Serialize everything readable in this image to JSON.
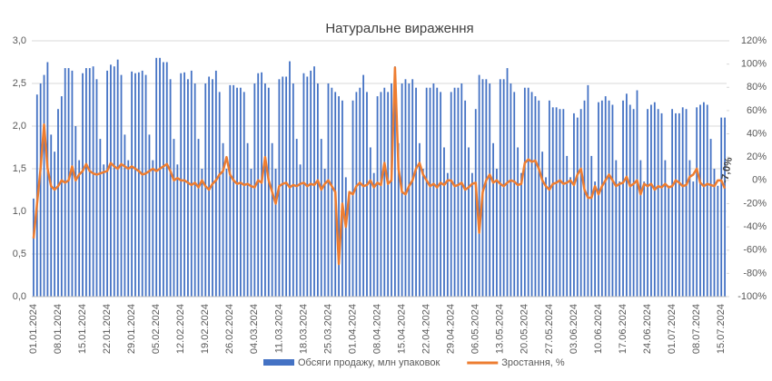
{
  "chart_data": {
    "type": "bar-line",
    "title": "Натуральне вираження",
    "categories": [
      "01.01.2024",
      null,
      null,
      null,
      null,
      null,
      null,
      "08.01.2024",
      null,
      null,
      null,
      null,
      null,
      null,
      "15.01.2024",
      null,
      null,
      null,
      null,
      null,
      null,
      "22.01.2024",
      null,
      null,
      null,
      null,
      null,
      null,
      "29.01.2024",
      null,
      null,
      null,
      null,
      null,
      null,
      "05.02.2024",
      null,
      null,
      null,
      null,
      null,
      null,
      "12.02.2024",
      null,
      null,
      null,
      null,
      null,
      null,
      "19.02.2024",
      null,
      null,
      null,
      null,
      null,
      null,
      "26.02.2024",
      null,
      null,
      null,
      null,
      null,
      null,
      "04.03.2024",
      null,
      null,
      null,
      null,
      null,
      null,
      "11.03.2024",
      null,
      null,
      null,
      null,
      null,
      null,
      "18.03.2024",
      null,
      null,
      null,
      null,
      null,
      null,
      "25.03.2024",
      null,
      null,
      null,
      null,
      null,
      null,
      "01.04.2024",
      null,
      null,
      null,
      null,
      null,
      null,
      "08.04.2024",
      null,
      null,
      null,
      null,
      null,
      null,
      "15.04.2024",
      null,
      null,
      null,
      null,
      null,
      null,
      "22.04.2024",
      null,
      null,
      null,
      null,
      null,
      null,
      "29.04.2024",
      null,
      null,
      null,
      null,
      null,
      null,
      "06.05.2024",
      null,
      null,
      null,
      null,
      null,
      null,
      "13.05.2024",
      null,
      null,
      null,
      null,
      null,
      null,
      "20.05.2024",
      null,
      null,
      null,
      null,
      null,
      null,
      "27.05.2024",
      null,
      null,
      null,
      null,
      null,
      null,
      "03.06.2024",
      null,
      null,
      null,
      null,
      null,
      null,
      "10.06.2024",
      null,
      null,
      null,
      null,
      null,
      null,
      "17.06.2024",
      null,
      null,
      null,
      null,
      null,
      null,
      "24.06.2024",
      null,
      null,
      null,
      null,
      null,
      null,
      "01.07.2024",
      null,
      null,
      null,
      null,
      null,
      null,
      "08.07.2024",
      null,
      null,
      null,
      null,
      null,
      null,
      "15.07.2024",
      null
    ],
    "series": [
      {
        "name": "Обсяги продажу, млн упаковок",
        "color": "#4472c4",
        "type": "bar",
        "values": [
          1.15,
          2.37,
          2.5,
          2.6,
          2.75,
          1.9,
          1.7,
          2.2,
          2.35,
          2.68,
          2.68,
          2.65,
          2.0,
          1.6,
          2.62,
          2.68,
          2.68,
          2.7,
          2.55,
          1.85,
          1.55,
          2.65,
          2.72,
          2.7,
          2.78,
          2.6,
          1.9,
          1.6,
          2.64,
          2.62,
          2.63,
          2.65,
          2.6,
          1.9,
          1.6,
          2.8,
          2.8,
          2.75,
          2.75,
          2.55,
          1.85,
          1.55,
          2.62,
          2.63,
          2.55,
          2.65,
          2.5,
          1.85,
          1.5,
          2.5,
          2.58,
          2.55,
          2.65,
          2.4,
          1.8,
          1.5,
          2.48,
          2.48,
          2.45,
          2.45,
          2.4,
          1.8,
          1.5,
          2.5,
          2.62,
          2.63,
          2.5,
          2.45,
          1.8,
          1.5,
          2.55,
          2.58,
          2.58,
          2.76,
          2.5,
          1.85,
          1.55,
          2.62,
          2.58,
          2.65,
          2.7,
          2.5,
          1.85,
          1.5,
          2.5,
          2.45,
          2.4,
          2.35,
          2.3,
          1.4,
          1.2,
          2.3,
          2.4,
          2.45,
          2.6,
          2.4,
          1.75,
          1.45,
          2.35,
          2.4,
          2.45,
          2.4,
          2.5,
          2.7,
          1.8,
          2.5,
          2.55,
          2.5,
          2.55,
          2.45,
          1.8,
          1.5,
          2.45,
          2.45,
          2.5,
          2.45,
          2.4,
          1.75,
          1.45,
          2.4,
          2.45,
          2.45,
          2.5,
          2.3,
          1.75,
          1.45,
          2.2,
          2.6,
          2.55,
          2.55,
          2.5,
          1.8,
          1.5,
          2.55,
          2.55,
          2.68,
          2.5,
          2.4,
          1.75,
          1.45,
          2.45,
          2.45,
          2.4,
          2.35,
          2.3,
          1.7,
          1.4,
          2.3,
          2.22,
          2.22,
          2.2,
          2.2,
          1.65,
          1.4,
          2.15,
          2.1,
          2.2,
          2.3,
          2.48,
          1.65,
          1.35,
          2.28,
          2.3,
          2.35,
          2.3,
          2.25,
          1.6,
          1.35,
          2.3,
          2.38,
          2.25,
          2.2,
          2.42,
          1.6,
          1.35,
          2.2,
          2.25,
          2.28,
          2.2,
          2.15,
          1.6,
          1.3,
          2.2,
          2.15,
          2.15,
          2.22,
          2.2,
          1.6,
          1.35,
          2.22,
          2.25,
          2.28,
          2.25,
          1.85,
          1.5,
          1.3,
          2.1,
          2.1
        ]
      },
      {
        "name": "Зростання, %",
        "color": "#ed7d31",
        "type": "line",
        "axis": "y2",
        "values": [
          -50,
          -20,
          10,
          48,
          10,
          -5,
          -8,
          -5,
          0,
          -2,
          0,
          12,
          0,
          5,
          8,
          14,
          8,
          6,
          5,
          6,
          7,
          8,
          15,
          12,
          10,
          14,
          12,
          10,
          12,
          10,
          8,
          5,
          6,
          8,
          10,
          8,
          10,
          12,
          14,
          8,
          0,
          2,
          0,
          0,
          -2,
          -4,
          -2,
          -6,
          0,
          -5,
          -8,
          -3,
          0,
          5,
          8,
          20,
          5,
          0,
          -3,
          -2,
          -4,
          -3,
          -5,
          -6,
          0,
          -2,
          20,
          0,
          -10,
          -20,
          -5,
          -3,
          -2,
          -6,
          -4,
          -5,
          -3,
          -2,
          -5,
          -3,
          -4,
          0,
          -8,
          -3,
          0,
          -5,
          -10,
          -72,
          -20,
          -40,
          -10,
          -12,
          -5,
          -2,
          -5,
          -4,
          0,
          -6,
          -2,
          -4,
          15,
          -3,
          0,
          97,
          10,
          -10,
          -12,
          -5,
          0,
          10,
          15,
          5,
          0,
          -5,
          -3,
          -6,
          -2,
          -4,
          0,
          0,
          -5,
          -4,
          -2,
          -8,
          -6,
          -3,
          -2,
          -45,
          -10,
          0,
          5,
          -2,
          0,
          -3,
          -5,
          -2,
          0,
          -1,
          -4,
          -3,
          15,
          18,
          16,
          17,
          10,
          0,
          -5,
          -8,
          -3,
          -2,
          0,
          -3,
          -2,
          0,
          -4,
          5,
          10,
          -8,
          -15,
          -15,
          -5,
          -12,
          -5,
          0,
          5,
          0,
          -5,
          -3,
          -2,
          3,
          -5,
          -3,
          0,
          -12,
          -3,
          -5,
          -3,
          -8,
          -5,
          -6,
          -3,
          -6,
          -5,
          0,
          -2,
          -5,
          -4,
          3,
          5,
          10,
          -2,
          -5,
          -3,
          -4,
          -5,
          0,
          0,
          -7
        ],
        "value_labels": [
          null,
          null,
          null,
          null,
          null,
          null,
          null,
          null,
          null,
          null,
          null,
          null,
          null,
          null,
          null,
          null,
          null,
          null,
          null,
          null,
          null,
          null,
          null,
          null,
          null,
          null,
          null,
          null,
          null,
          null,
          null,
          null,
          null,
          null,
          null,
          null,
          null,
          null,
          null,
          null,
          null,
          null,
          null,
          null,
          null,
          null,
          null,
          null,
          null,
          null,
          null,
          null,
          null,
          null,
          null,
          null,
          null,
          null,
          null,
          null,
          null,
          null,
          null,
          null,
          null,
          null,
          null,
          null,
          null,
          null,
          null,
          null,
          null,
          null,
          null,
          null,
          null,
          null,
          null,
          null,
          null,
          null,
          null,
          null,
          null,
          null,
          null,
          null,
          null,
          null,
          null,
          null,
          null,
          null,
          null,
          null,
          null,
          null,
          null,
          null,
          null,
          null,
          null,
          null,
          null,
          null,
          null,
          null,
          null,
          null,
          null,
          null,
          null,
          null,
          null,
          null,
          null,
          null,
          null,
          null,
          null,
          null,
          null,
          null,
          null,
          null,
          null,
          null,
          null,
          null,
          null,
          null,
          null,
          null,
          null,
          null,
          null,
          null,
          null,
          null,
          null,
          null,
          null,
          null,
          null,
          null,
          null,
          null,
          null,
          null,
          null,
          null,
          null,
          null,
          null,
          null,
          null,
          null,
          null,
          null,
          null,
          null,
          null,
          null,
          null,
          null,
          null,
          null,
          null,
          null,
          null,
          null,
          null,
          null,
          null,
          null,
          null,
          null,
          null,
          null,
          null,
          null,
          null,
          null,
          null,
          null,
          null,
          null,
          null,
          null,
          null,
          null,
          null,
          null,
          null,
          null,
          null,
          "-7,0%"
        ]
      }
    ],
    "ylim": [
      0,
      3
    ],
    "yticks": [
      {
        "value": 0,
        "label": "0,0"
      },
      {
        "value": 0.5,
        "label": "0,5"
      },
      {
        "value": 1,
        "label": "1,0"
      },
      {
        "value": 1.5,
        "label": "1,5"
      },
      {
        "value": 2,
        "label": "2,0"
      },
      {
        "value": 2.5,
        "label": "2,5"
      },
      {
        "value": 3,
        "label": "3,0"
      }
    ],
    "y2lim": [
      -100,
      120
    ],
    "y2ticks": [
      {
        "value": -100,
        "label": "-100%"
      },
      {
        "value": -80,
        "label": "-80%"
      },
      {
        "value": -60,
        "label": "-60%"
      },
      {
        "value": -40,
        "label": "-40%"
      },
      {
        "value": -20,
        "label": "-20%"
      },
      {
        "value": 0,
        "label": "0%"
      },
      {
        "value": 20,
        "label": "20%"
      },
      {
        "value": 40,
        "label": "40%"
      },
      {
        "value": 60,
        "label": "60%"
      },
      {
        "value": 80,
        "label": "80%"
      },
      {
        "value": 100,
        "label": "100%"
      },
      {
        "value": 120,
        "label": "120%"
      }
    ],
    "grid": true,
    "legend": "bottom"
  }
}
